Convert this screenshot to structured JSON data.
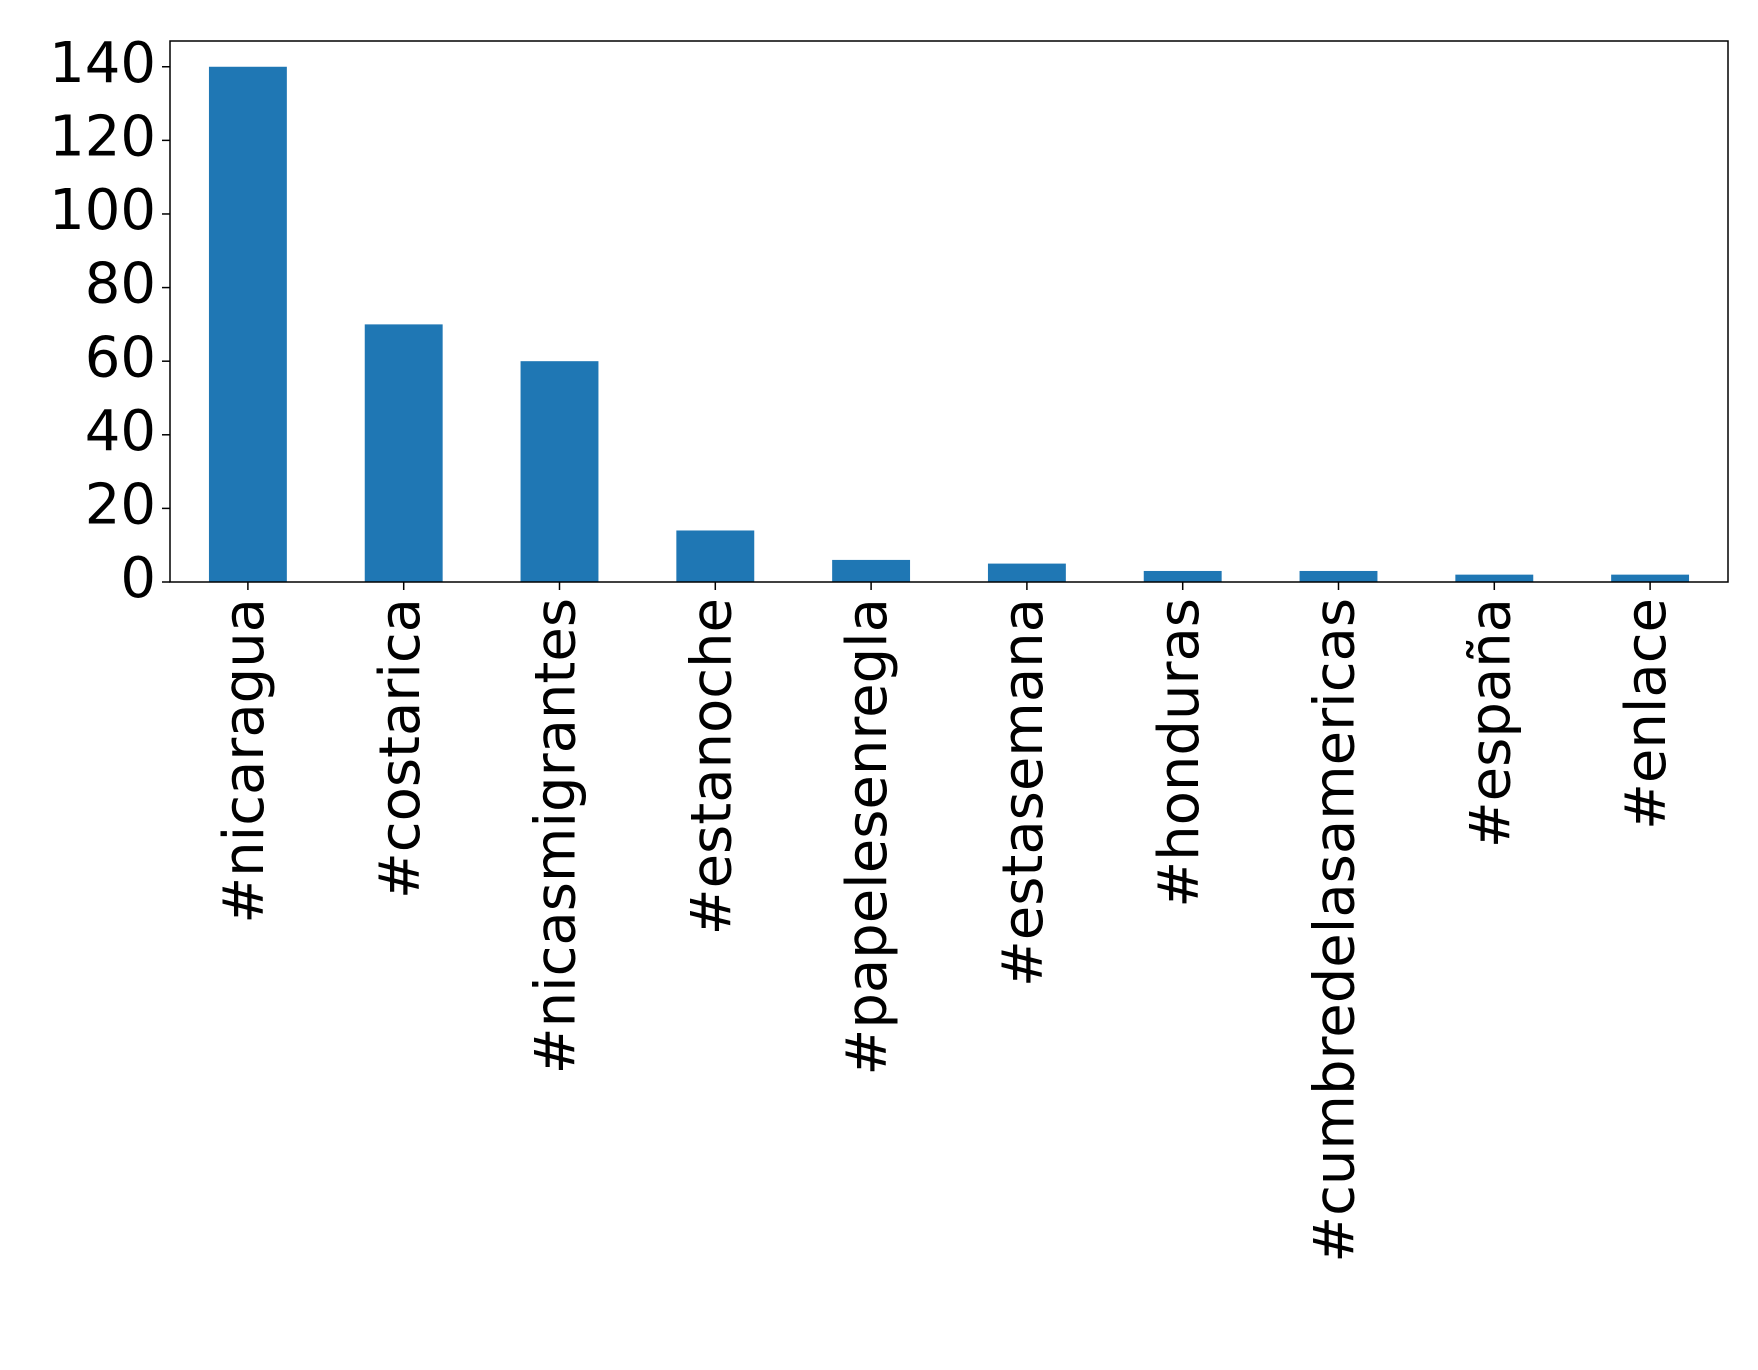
{
  "chart_data": {
    "type": "bar",
    "categories": [
      "#nicaragua",
      "#costarica",
      "#nicasmigrantes",
      "#estanoche",
      "#papelesenregla",
      "#estasemana",
      "#honduras",
      "#cumbredelasamericas",
      "#españa",
      "#enlace"
    ],
    "values": [
      140,
      70,
      60,
      14,
      6,
      5,
      3,
      3,
      2,
      2
    ],
    "color": "#1f77b4",
    "ylim": [
      0,
      147
    ],
    "yticks": [
      0,
      20,
      40,
      60,
      80,
      100,
      120,
      140
    ],
    "grid": false
  }
}
